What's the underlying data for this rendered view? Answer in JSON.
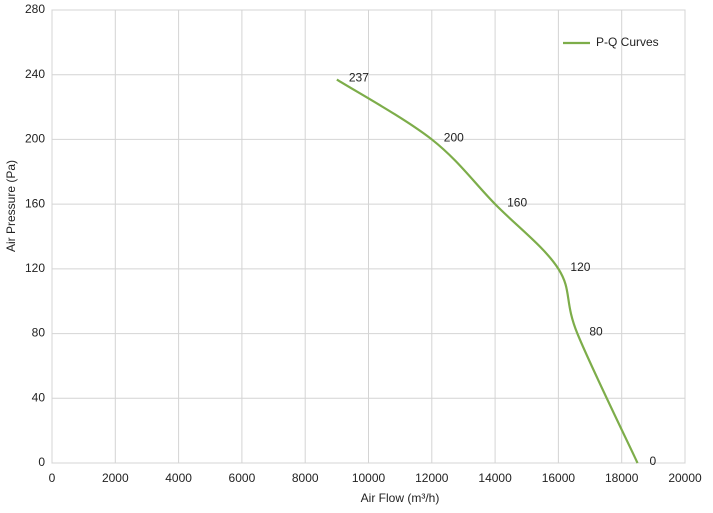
{
  "chart_data": {
    "type": "line",
    "x_label": "Air Flow  (m³/h)",
    "y_label": "Air Pressure  (Pa)",
    "x": [
      9000,
      12000,
      14000,
      16000,
      16600,
      18500
    ],
    "series": [
      {
        "name": "P-Q Curves",
        "color": "#7dad4a",
        "values": [
          237,
          200,
          160,
          120,
          80,
          0
        ]
      }
    ],
    "xlim": [
      0,
      20000
    ],
    "xticks": [
      0,
      2000,
      4000,
      6000,
      8000,
      10000,
      12000,
      14000,
      16000,
      18000,
      20000
    ],
    "ylim": [
      0,
      280
    ],
    "yticks": [
      0,
      40,
      80,
      120,
      160,
      200,
      240,
      280
    ],
    "grid": true,
    "legend": "upper right"
  }
}
